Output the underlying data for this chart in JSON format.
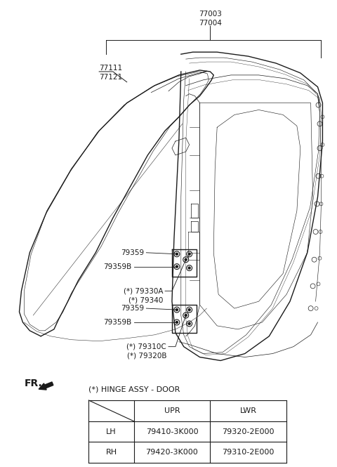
{
  "bg_color": "#ffffff",
  "part_labels_top": [
    "77003",
    "77004"
  ],
  "part_label_left_top": [
    "77111",
    "77121"
  ],
  "hinge_label": "(*) HINGE ASSY - DOOR",
  "table_headers": [
    "",
    "UPR",
    "LWR"
  ],
  "table_rows": [
    [
      "LH",
      "79410-3K000",
      "79320-2E000"
    ],
    [
      "RH",
      "79420-3K000",
      "79310-2E000"
    ]
  ],
  "dark": "#1a1a1a",
  "gray": "#444444",
  "light_gray": "#888888"
}
